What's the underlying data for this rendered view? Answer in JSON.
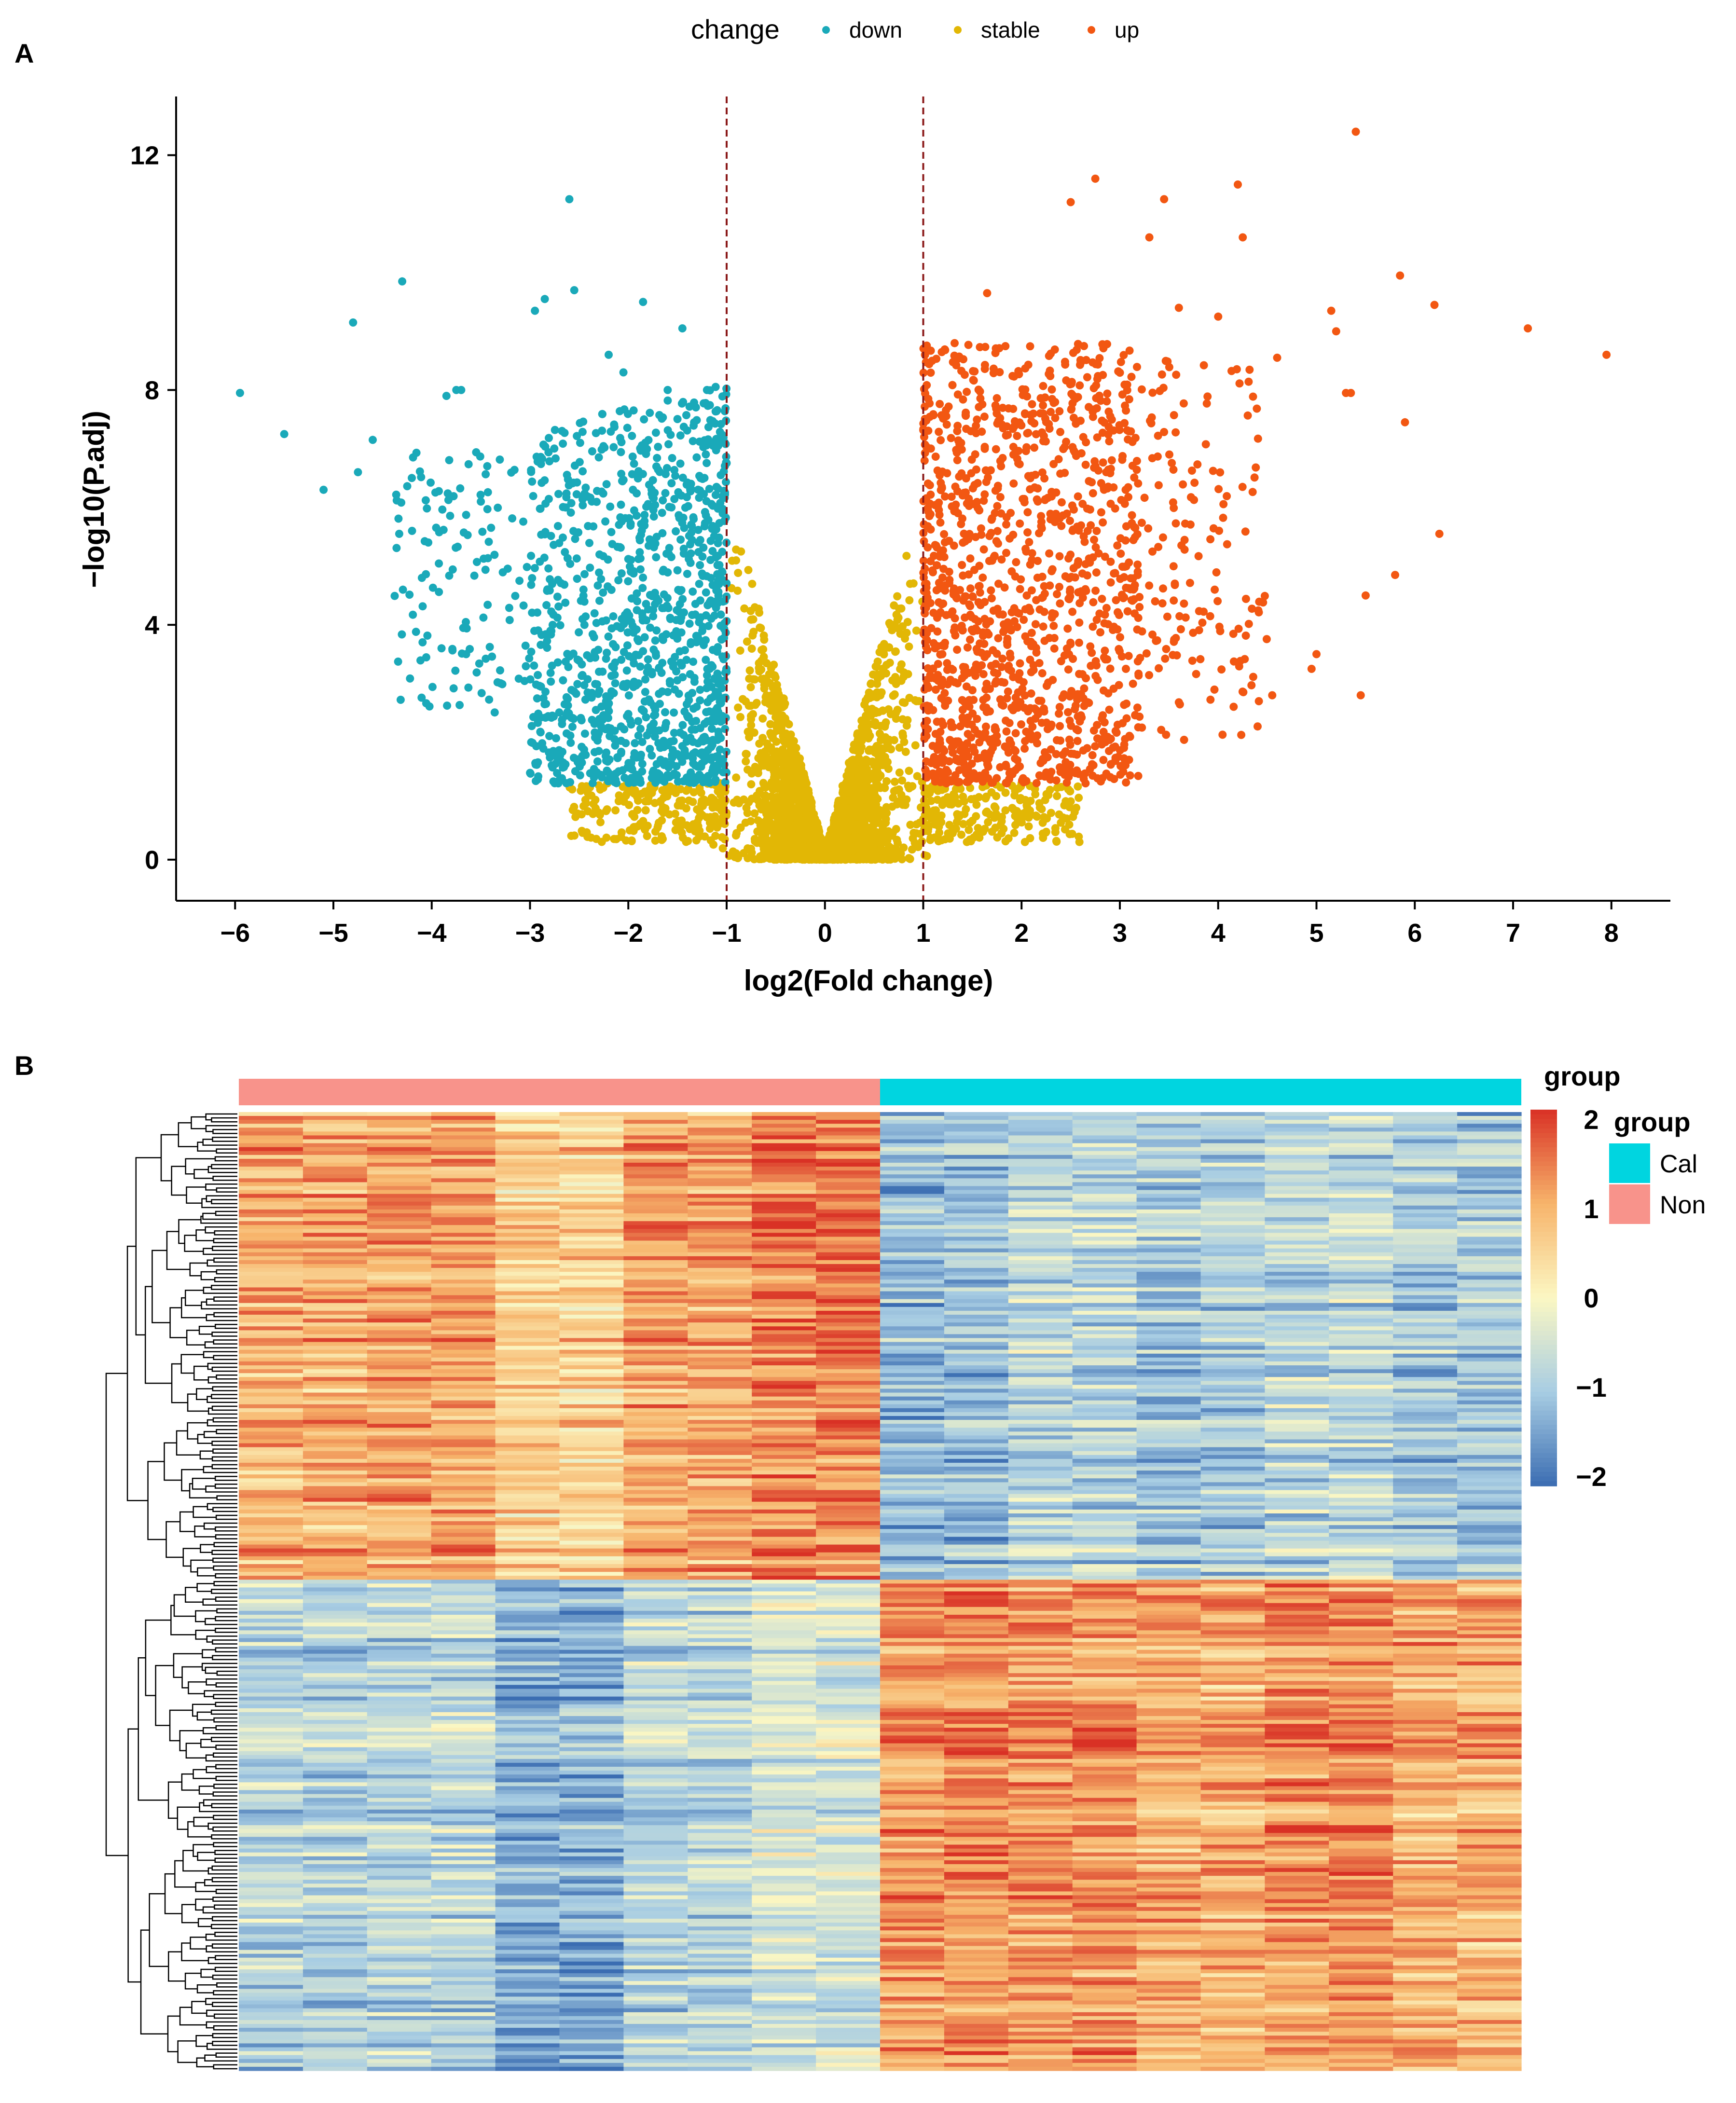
{
  "panels": {
    "a": {
      "label": "A"
    },
    "b": {
      "label": "B"
    }
  },
  "chart_data": [
    {
      "type": "scatter",
      "chart": "volcano",
      "xlabel": "log2(Fold change)",
      "ylabel": "−log10(P.adj)",
      "xlim": [
        -6.6,
        8.6
      ],
      "ylim": [
        -0.7,
        13.0
      ],
      "xticks": [
        -6,
        -5,
        -4,
        -3,
        -2,
        -1,
        0,
        1,
        2,
        3,
        4,
        5,
        6,
        7,
        8
      ],
      "xtick_labels": [
        "−6",
        "−5",
        "−4",
        "−3",
        "−2",
        "−1",
        "0",
        "1",
        "2",
        "3",
        "4",
        "5",
        "6",
        "7",
        "8"
      ],
      "yticks": [
        0,
        4,
        8,
        12
      ],
      "ytick_labels": [
        "0",
        "4",
        "8",
        "12"
      ],
      "thresholds": {
        "fold_change": [
          -1,
          1
        ],
        "padj_min": 1.3
      },
      "legend": {
        "title": "change",
        "position": "top",
        "entries": [
          {
            "name": "down",
            "color": "#1aa9b9"
          },
          {
            "name": "stable",
            "color": "#e2b705"
          },
          {
            "name": "up",
            "color": "#f25712"
          }
        ]
      },
      "series": [
        {
          "name": "down",
          "color": "#1aa9b9",
          "points": [
            [
              -5.95,
              7.95
            ],
            [
              -5.5,
              7.25
            ],
            [
              -5.1,
              6.3
            ],
            [
              -4.8,
              9.15
            ],
            [
              -4.75,
              6.6
            ],
            [
              -4.6,
              7.15
            ],
            [
              -4.3,
              9.85
            ],
            [
              -4.2,
              5.6
            ],
            [
              -4.1,
              4.8
            ],
            [
              -3.9,
              3.6
            ],
            [
              -3.85,
              7.9
            ],
            [
              -3.75,
              8.0
            ],
            [
              -3.7,
              8.0
            ],
            [
              -3.65,
              3.5
            ],
            [
              -3.5,
              6.1
            ],
            [
              -2.95,
              9.35
            ],
            [
              -2.85,
              9.55
            ],
            [
              -2.6,
              11.25
            ],
            [
              -2.55,
              9.7
            ],
            [
              -1.85,
              9.5
            ],
            [
              -1.45,
              9.05
            ],
            [
              -2.2,
              8.6
            ],
            [
              -2.05,
              8.3
            ],
            [
              -1.6,
              8.0
            ],
            [
              -1.2,
              8.0
            ]
          ]
        },
        {
          "name": "up",
          "color": "#f25712",
          "points": [
            [
              5.4,
              12.4
            ],
            [
              2.75,
              11.6
            ],
            [
              4.2,
              11.5
            ],
            [
              3.45,
              11.25
            ],
            [
              2.5,
              11.2
            ],
            [
              3.3,
              10.6
            ],
            [
              4.25,
              10.6
            ],
            [
              5.85,
              9.95
            ],
            [
              1.65,
              9.65
            ],
            [
              6.2,
              9.45
            ],
            [
              3.6,
              9.4
            ],
            [
              5.15,
              9.35
            ],
            [
              4.0,
              9.25
            ],
            [
              7.15,
              9.05
            ],
            [
              5.2,
              9.0
            ],
            [
              7.95,
              8.6
            ],
            [
              4.6,
              8.55
            ],
            [
              5.35,
              7.95
            ],
            [
              5.3,
              7.95
            ],
            [
              5.9,
              7.45
            ],
            [
              6.25,
              5.55
            ],
            [
              5.5,
              4.5
            ],
            [
              5.8,
              4.85
            ],
            [
              5.45,
              2.8
            ],
            [
              4.55,
              2.8
            ],
            [
              5.0,
              3.5
            ],
            [
              4.95,
              3.25
            ]
          ]
        }
      ]
    },
    {
      "type": "heatmap",
      "color_scale": {
        "min": -2,
        "max": 2,
        "colors": [
          "#3b6db2",
          "#a8cde3",
          "#fbf7c3",
          "#f7b46b",
          "#d93125"
        ]
      },
      "scale_ticks": [
        2,
        1,
        0,
        -1,
        -2
      ],
      "scale_tick_labels": [
        "2",
        "1",
        "0",
        "−1",
        "−2"
      ],
      "annotation": {
        "legend_title": "group",
        "groups": [
          {
            "name": "Cal",
            "color": "#00d5e0",
            "samples": 10
          },
          {
            "name": "Non",
            "color": "#f8938b",
            "samples": 10
          }
        ],
        "column_order": [
          "Non",
          "Cal"
        ]
      },
      "row_clusters": [
        {
          "rows": 120,
          "pattern": "up in Non, down in Cal"
        },
        {
          "rows": 126,
          "pattern": "down in Non, up in Cal"
        }
      ]
    }
  ]
}
